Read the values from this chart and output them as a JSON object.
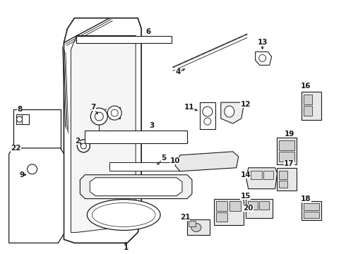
{
  "bg_color": "#ffffff",
  "line_color": "#1a1a1a",
  "figsize": [
    4.9,
    3.6
  ],
  "dpi": 100,
  "label_fs": 7.5
}
